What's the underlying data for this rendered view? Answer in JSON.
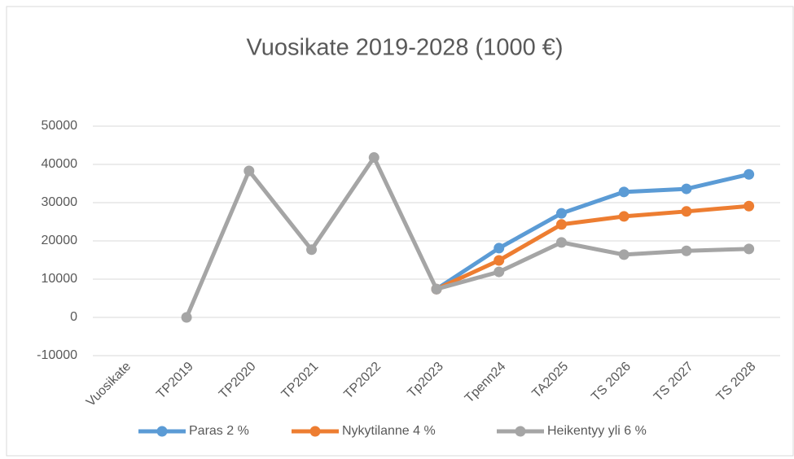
{
  "chart_data": {
    "type": "line",
    "title": "Vuosikate 2019-2028 (1000 €)",
    "categories": [
      "Vuosikate",
      "TP2019",
      "TP2020",
      "TP2021",
      "TP2022",
      "Tp2023",
      "Tpenn24",
      "TA2025",
      "TS 2026",
      "TS 2027",
      "TS 2028"
    ],
    "series": [
      {
        "name": "Paras 2 %",
        "color": "#5b9bd5",
        "values": [
          null,
          null,
          null,
          null,
          null,
          7400,
          18100,
          27200,
          32800,
          33600,
          37400
        ]
      },
      {
        "name": "Nykytilanne 4 %",
        "color": "#ed7d31",
        "values": [
          null,
          null,
          null,
          null,
          null,
          7400,
          14900,
          24300,
          26400,
          27700,
          29100
        ]
      },
      {
        "name": "Heikentyy yli 6 %",
        "color": "#a5a5a5",
        "values": [
          null,
          0,
          38300,
          17700,
          41800,
          7400,
          11900,
          19600,
          16400,
          17400,
          17900
        ]
      }
    ],
    "ylim": [
      -10000,
      50000
    ],
    "yticks": [
      -10000,
      0,
      10000,
      20000,
      30000,
      40000,
      50000
    ],
    "grid": true,
    "legend": "bottom"
  }
}
